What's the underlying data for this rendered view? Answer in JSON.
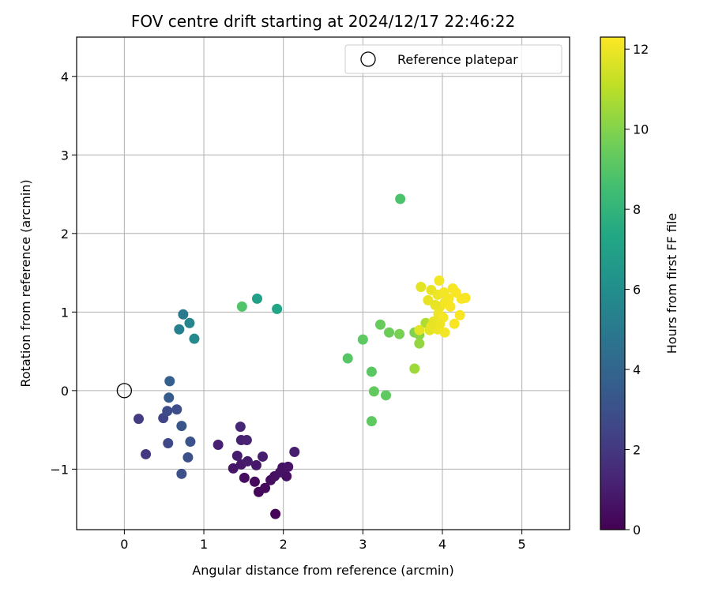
{
  "chart_data": {
    "type": "scatter",
    "title": "FOV centre drift starting at 2024/12/17 22:46:22",
    "xlabel": "Angular distance from reference (arcmin)",
    "ylabel": "Rotation from reference (arcmin)",
    "xlim": [
      -0.6,
      5.6
    ],
    "ylim": [
      -1.77,
      4.5
    ],
    "xticks": [
      0,
      1,
      2,
      3,
      4,
      5
    ],
    "yticks": [
      -1,
      0,
      1,
      2,
      3,
      4
    ],
    "xtick_labels": [
      "0",
      "1",
      "2",
      "3",
      "4",
      "5"
    ],
    "ytick_labels": [
      "−1",
      "0",
      "1",
      "2",
      "3",
      "4"
    ],
    "grid": true,
    "legend_position": "top-right",
    "reference": {
      "label": "Reference platepar",
      "x": 0,
      "y": 0
    },
    "colorbar": {
      "label": "Hours from first FF file",
      "colormap": "viridis",
      "min": 0,
      "max": 12.3,
      "ticks": [
        0,
        2,
        4,
        6,
        8,
        10,
        12
      ],
      "tick_labels": [
        "0",
        "2",
        "4",
        "6",
        "8",
        "10",
        "12"
      ]
    },
    "points": [
      {
        "x": 1.9,
        "y": -1.57,
        "h": 0.1
      },
      {
        "x": 1.69,
        "y": -1.29,
        "h": 0.2
      },
      {
        "x": 1.77,
        "y": -1.24,
        "h": 0.3
      },
      {
        "x": 1.64,
        "y": -1.16,
        "h": 0.3
      },
      {
        "x": 1.84,
        "y": -1.14,
        "h": 0.4
      },
      {
        "x": 1.51,
        "y": -1.11,
        "h": 0.4
      },
      {
        "x": 1.89,
        "y": -1.09,
        "h": 0.5
      },
      {
        "x": 2.04,
        "y": -1.09,
        "h": 0.5
      },
      {
        "x": 1.96,
        "y": -1.04,
        "h": 0.6
      },
      {
        "x": 1.99,
        "y": -0.98,
        "h": 0.6
      },
      {
        "x": 2.06,
        "y": -0.97,
        "h": 0.7
      },
      {
        "x": 1.37,
        "y": -0.99,
        "h": 0.7
      },
      {
        "x": 1.47,
        "y": -0.94,
        "h": 0.8
      },
      {
        "x": 1.66,
        "y": -0.95,
        "h": 0.8
      },
      {
        "x": 1.55,
        "y": -0.9,
        "h": 0.9
      },
      {
        "x": 1.42,
        "y": -0.83,
        "h": 0.9
      },
      {
        "x": 1.74,
        "y": -0.84,
        "h": 1.0
      },
      {
        "x": 2.14,
        "y": -0.78,
        "h": 1.0
      },
      {
        "x": 1.18,
        "y": -0.69,
        "h": 1.1
      },
      {
        "x": 1.47,
        "y": -0.63,
        "h": 1.1
      },
      {
        "x": 1.54,
        "y": -0.63,
        "h": 1.2
      },
      {
        "x": 1.46,
        "y": -0.46,
        "h": 1.3
      },
      {
        "x": 0.27,
        "y": -0.81,
        "h": 2.0
      },
      {
        "x": 0.18,
        "y": -0.36,
        "h": 2.2
      },
      {
        "x": 0.49,
        "y": -0.35,
        "h": 2.5
      },
      {
        "x": 0.55,
        "y": -0.67,
        "h": 2.7
      },
      {
        "x": 0.54,
        "y": -0.26,
        "h": 2.8
      },
      {
        "x": 0.66,
        "y": -0.24,
        "h": 2.9
      },
      {
        "x": 0.72,
        "y": -1.06,
        "h": 3.0
      },
      {
        "x": 0.8,
        "y": -0.85,
        "h": 3.0
      },
      {
        "x": 0.83,
        "y": -0.65,
        "h": 3.2
      },
      {
        "x": 0.72,
        "y": -0.45,
        "h": 3.3
      },
      {
        "x": 0.56,
        "y": -0.09,
        "h": 3.5
      },
      {
        "x": 0.57,
        "y": 0.12,
        "h": 3.7
      },
      {
        "x": 0.74,
        "y": 0.97,
        "h": 5.0
      },
      {
        "x": 0.69,
        "y": 0.78,
        "h": 5.3
      },
      {
        "x": 0.82,
        "y": 0.86,
        "h": 5.6
      },
      {
        "x": 0.88,
        "y": 0.66,
        "h": 5.8
      },
      {
        "x": 1.67,
        "y": 1.17,
        "h": 6.9
      },
      {
        "x": 1.92,
        "y": 1.04,
        "h": 7.2
      },
      {
        "x": 1.48,
        "y": 1.07,
        "h": 8.9
      },
      {
        "x": 3.47,
        "y": 2.44,
        "h": 8.8
      },
      {
        "x": 2.81,
        "y": 0.41,
        "h": 9.0
      },
      {
        "x": 3.0,
        "y": 0.65,
        "h": 9.2
      },
      {
        "x": 3.11,
        "y": 0.24,
        "h": 9.1
      },
      {
        "x": 3.14,
        "y": -0.01,
        "h": 9.3
      },
      {
        "x": 3.29,
        "y": -0.06,
        "h": 9.2
      },
      {
        "x": 3.11,
        "y": -0.39,
        "h": 9.2
      },
      {
        "x": 3.22,
        "y": 0.84,
        "h": 9.4
      },
      {
        "x": 3.33,
        "y": 0.74,
        "h": 9.5
      },
      {
        "x": 3.46,
        "y": 0.72,
        "h": 9.8
      },
      {
        "x": 3.65,
        "y": 0.74,
        "h": 9.9
      },
      {
        "x": 3.71,
        "y": 0.71,
        "h": 10.1
      },
      {
        "x": 3.71,
        "y": 0.6,
        "h": 10.3
      },
      {
        "x": 3.65,
        "y": 0.28,
        "h": 10.5
      },
      {
        "x": 3.79,
        "y": 0.86,
        "h": 10.8
      },
      {
        "x": 3.73,
        "y": 1.32,
        "h": 11.8
      },
      {
        "x": 3.86,
        "y": 1.28,
        "h": 11.9
      },
      {
        "x": 3.82,
        "y": 1.15,
        "h": 11.9
      },
      {
        "x": 3.94,
        "y": 1.22,
        "h": 12.0
      },
      {
        "x": 3.96,
        "y": 1.4,
        "h": 12.1
      },
      {
        "x": 4.02,
        "y": 1.25,
        "h": 12.1
      },
      {
        "x": 4.08,
        "y": 1.17,
        "h": 12.2
      },
      {
        "x": 4.13,
        "y": 1.3,
        "h": 12.2
      },
      {
        "x": 4.17,
        "y": 1.25,
        "h": 12.2
      },
      {
        "x": 4.24,
        "y": 1.17,
        "h": 12.2
      },
      {
        "x": 4.29,
        "y": 1.18,
        "h": 12.2
      },
      {
        "x": 3.97,
        "y": 1.07,
        "h": 12.0
      },
      {
        "x": 4.03,
        "y": 1.12,
        "h": 12.1
      },
      {
        "x": 4.1,
        "y": 1.07,
        "h": 12.2
      },
      {
        "x": 3.91,
        "y": 1.09,
        "h": 11.9
      },
      {
        "x": 3.95,
        "y": 0.98,
        "h": 12.0
      },
      {
        "x": 4.01,
        "y": 0.93,
        "h": 12.1
      },
      {
        "x": 3.89,
        "y": 0.88,
        "h": 11.9
      },
      {
        "x": 3.97,
        "y": 0.85,
        "h": 12.0
      },
      {
        "x": 4.22,
        "y": 0.96,
        "h": 12.2
      },
      {
        "x": 4.15,
        "y": 0.85,
        "h": 12.2
      },
      {
        "x": 3.84,
        "y": 0.77,
        "h": 11.8
      },
      {
        "x": 3.94,
        "y": 0.78,
        "h": 12.0
      },
      {
        "x": 3.71,
        "y": 0.77,
        "h": 11.8
      },
      {
        "x": 4.03,
        "y": 0.74,
        "h": 12.1
      },
      {
        "x": 3.86,
        "y": 0.82,
        "h": 11.9
      }
    ]
  }
}
